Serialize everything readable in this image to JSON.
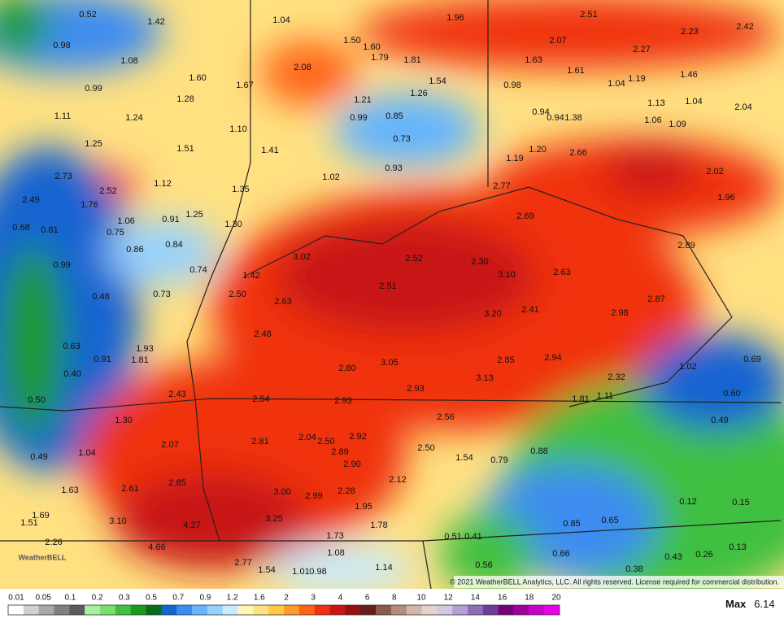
{
  "map": {
    "labels": [
      "0.52",
      "1.42",
      "1.04",
      "1.96",
      "2.51",
      "2.42",
      "2.23",
      "0.98",
      "1.50",
      "1.60",
      "2.07",
      "2.27",
      "1.79",
      "1.81",
      "1.08",
      "2.08",
      "1.63",
      "1.61",
      "1.46",
      "1.04",
      "1.19",
      "1.60",
      "1.67",
      "1.54",
      "0.99",
      "0.98",
      "1.26",
      "1.28",
      "1.21",
      "1.13",
      "1.04",
      "2.04",
      "1.11",
      "1.24",
      "0.99",
      "0.85",
      "0.94",
      "0.94",
      "1.38",
      "1.06",
      "1.09",
      "1.10",
      "0.73",
      "1.25",
      "1.51",
      "1.41",
      "1.20",
      "2.66",
      "1.19",
      "0.93",
      "1.02",
      "2.73",
      "1.12",
      "2.02",
      "2.52",
      "1.35",
      "2.77",
      "2.49",
      "1.76",
      "1.96",
      "1.06",
      "0.91",
      "1.25",
      "1.30",
      "2.69",
      "0.68",
      "0.81",
      "0.75",
      "0.84",
      "0.86",
      "2.89",
      "3.02",
      "2.52",
      "2.30",
      "0.99",
      "0.74",
      "3.10",
      "2.63",
      "1.42",
      "2.51",
      "0.48",
      "0.73",
      "2.50",
      "2.63",
      "2.87",
      "2.41",
      "3.20",
      "2.98",
      "2.48",
      "0.63",
      "1.93",
      "1.81",
      "0.91",
      "2.85",
      "2.94",
      "3.05",
      "0.69",
      "1.02",
      "2.80",
      "0.40",
      "2.32",
      "3.13",
      "2.93",
      "2.43",
      "0.60",
      "1.81",
      "1.11",
      "0.50",
      "2.54",
      "2.93",
      "2.56",
      "1.30",
      "0.49",
      "2.92",
      "2.04",
      "2.50",
      "2.81",
      "2.07",
      "0.88",
      "2.50",
      "1.04",
      "2.89",
      "0.49",
      "1.54",
      "0.79",
      "2.90",
      "2.85",
      "2.12",
      "1.63",
      "2.61",
      "3.00",
      "2.99",
      "2.28",
      "0.12",
      "0.15",
      "1.95",
      "1.69",
      "1.51",
      "3.10",
      "4.27",
      "3.25",
      "0.85",
      "0.65",
      "1.78",
      "1.73",
      "0.51",
      "0.41",
      "2.26",
      "4.66",
      "0.13",
      "1.08",
      "0.66",
      "0.43",
      "0.26",
      "2.77",
      "0.56",
      "1.14",
      "1.54",
      "1.01",
      "0.98",
      "0.38"
    ],
    "copyright": "© 2021 WeatherBELL Analytics, LLC. All rights reserved. License required for commercial distribution.",
    "logo": "WeatherBELL"
  },
  "legend": {
    "ticks": [
      "0.01",
      "0.05",
      "0.1",
      "0.2",
      "0.3",
      "0.5",
      "0.7",
      "0.9",
      "1.2",
      "1.6",
      "2",
      "3",
      "4",
      "6",
      "8",
      "10",
      "12",
      "14",
      "16",
      "18",
      "20"
    ],
    "colors": [
      "#ffffff",
      "#d0d0d0",
      "#a8a8a8",
      "#808080",
      "#5a5a5a",
      "#a8f0a0",
      "#78e070",
      "#40c040",
      "#1a9a1a",
      "#0a6a1a",
      "#1464d2",
      "#3c8cf0",
      "#64b4ff",
      "#96d2ff",
      "#c8ebff",
      "#fff5b4",
      "#ffe182",
      "#ffc846",
      "#ff9b28",
      "#ff6414",
      "#f03010",
      "#c81414",
      "#961010",
      "#641e1e",
      "#8c5a4a",
      "#b48c7a",
      "#d2b4a8",
      "#e6d2cc",
      "#d2c8e6",
      "#b4a0d2",
      "#8c6eb4",
      "#6e3c96",
      "#780078",
      "#a000a0",
      "#c800c8",
      "#e600e6"
    ],
    "max_label": "Max",
    "max_value": "6.14"
  }
}
